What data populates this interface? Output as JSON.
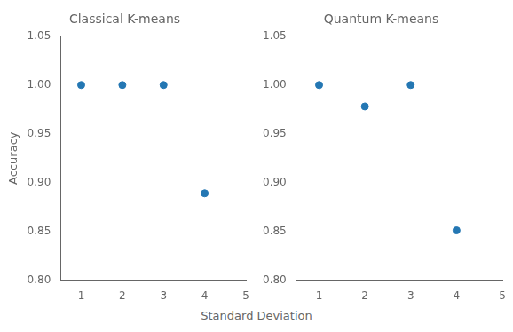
{
  "chart_data": [
    {
      "type": "scatter",
      "title": "Classical K-means",
      "ylabel": "Accuracy",
      "xlabel": "Standard Deviation",
      "x": [
        1,
        2,
        3,
        4
      ],
      "series": [
        {
          "color": "#2477b3",
          "values": [
            1.0,
            1.0,
            1.0,
            0.889
          ]
        }
      ],
      "xlim": [
        0.5,
        5
      ],
      "xticks": [
        1,
        2,
        3,
        4,
        5
      ],
      "ylim": [
        0.8,
        1.05
      ],
      "yticks": [
        {
          "value": 0.8,
          "label": "0.80"
        },
        0.85,
        {
          "value": 0.9,
          "label": "0.90"
        },
        0.95,
        {
          "value": 1.0,
          "label": "1.00"
        },
        1.05
      ],
      "grid": false
    },
    {
      "type": "scatter",
      "title": "Quantum K-means",
      "x": [
        1,
        2,
        3,
        4
      ],
      "series": [
        {
          "color": "#2477b3",
          "values": [
            1.0,
            0.978,
            1.0,
            0.851
          ]
        }
      ],
      "xlim": [
        0.5,
        5
      ],
      "xticks": [
        1,
        2,
        3,
        4,
        5
      ],
      "ylim": [
        0.8,
        1.05
      ],
      "yticks": [
        {
          "value": 0.8,
          "label": "0.80"
        },
        0.85,
        {
          "value": 0.9,
          "label": "0.90"
        },
        0.95,
        {
          "value": 1.0,
          "label": "1.00"
        },
        1.05
      ],
      "grid": false
    }
  ]
}
